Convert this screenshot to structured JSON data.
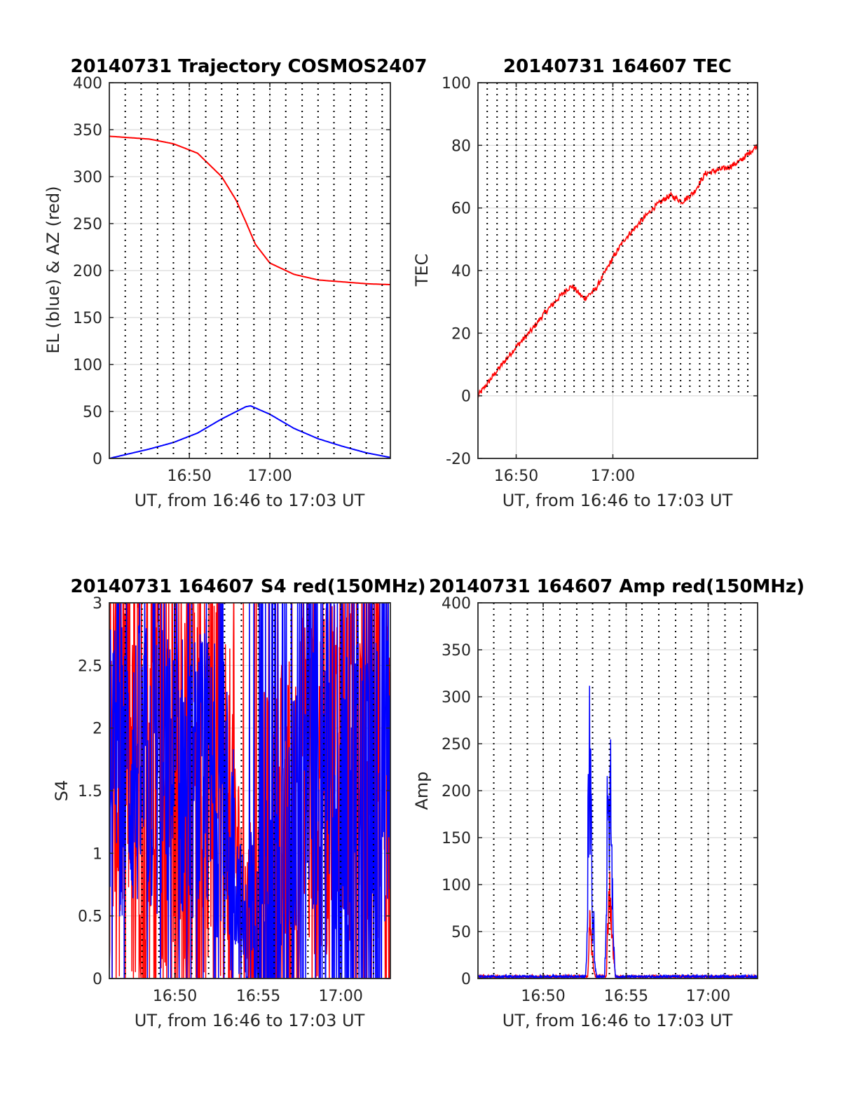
{
  "figure": {
    "background": "#ffffff"
  },
  "colors": {
    "red": "#ff0000",
    "blue": "#0000ff",
    "grid": "#d9d9d9",
    "axis": "#262626",
    "vline": "#000000"
  },
  "chart_data": [
    {
      "id": "traj",
      "type": "line",
      "title": "20140731 Trajectory COSMOS2407",
      "xlabel": "UT, from 16:46 to 17:03 UT",
      "ylabel": "EL (blue) & AZ (red)",
      "xlim": [
        16.667,
        17.25
      ],
      "ylim": [
        0,
        400
      ],
      "yticks": [
        0,
        50,
        100,
        150,
        200,
        250,
        300,
        350,
        400
      ],
      "ytick_labels": [
        "0",
        "50",
        "100",
        "150",
        "200",
        "250",
        "300",
        "350",
        "400"
      ],
      "xticks": [
        16.833,
        17.0
      ],
      "xtick_labels": [
        "16:50",
        "17:00"
      ],
      "grid": true,
      "vlines": [
        16.7,
        16.733,
        16.767,
        16.8,
        16.833,
        16.867,
        16.9,
        16.933,
        16.967,
        17.0,
        17.033,
        17.067,
        17.1,
        17.133,
        17.167,
        17.2,
        17.233
      ],
      "series": [
        {
          "color": "red",
          "x": [
            16.667,
            16.75,
            16.8,
            16.85,
            16.9,
            16.93,
            16.95,
            16.97,
            17.0,
            17.05,
            17.1,
            17.15,
            17.2,
            17.25
          ],
          "y": [
            343,
            340,
            335,
            325,
            300,
            275,
            252,
            228,
            208,
            196,
            190,
            188,
            186,
            185
          ]
        },
        {
          "color": "blue",
          "x": [
            16.667,
            16.75,
            16.8,
            16.85,
            16.9,
            16.95,
            16.96,
            17.0,
            17.05,
            17.1,
            17.15,
            17.2,
            17.25
          ],
          "y": [
            0,
            10,
            17,
            27,
            42,
            55,
            56,
            47,
            32,
            21,
            13,
            6,
            1
          ]
        }
      ]
    },
    {
      "id": "tec",
      "type": "line",
      "title": "20140731 164607 TEC",
      "xlabel": "UT, from 16:46 to 17:03 UT",
      "ylabel": "TEC",
      "xlim": [
        16.767,
        17.25
      ],
      "ylim": [
        -20,
        100
      ],
      "yticks": [
        -20,
        0,
        20,
        40,
        60,
        80,
        100
      ],
      "ytick_labels": [
        "-20",
        "0",
        "20",
        "40",
        "60",
        "80",
        "100"
      ],
      "xticks": [
        16.833,
        17.0
      ],
      "xtick_labels": [
        "16:50",
        "17:00"
      ],
      "grid": true,
      "vlines": [
        16.783,
        16.8,
        16.817,
        16.833,
        16.85,
        16.867,
        16.883,
        16.9,
        16.917,
        16.933,
        16.95,
        16.967,
        16.983,
        17.0,
        17.017,
        17.033,
        17.05,
        17.067,
        17.083,
        17.1,
        17.117,
        17.133,
        17.15,
        17.167,
        17.183,
        17.2,
        17.217,
        17.233
      ],
      "vline_range": [
        0,
        100
      ],
      "series": [
        {
          "color": "red",
          "x": [
            16.767,
            16.8,
            16.83,
            16.86,
            16.88,
            16.9,
            16.91,
            16.92,
            16.93,
            16.95,
            16.97,
            17.0,
            17.02,
            17.05,
            17.07,
            17.09,
            17.1,
            17.12,
            17.14,
            17.16,
            17.18,
            17.2,
            17.22,
            17.25
          ],
          "y": [
            0,
            8,
            15,
            21,
            26,
            30,
            32,
            34,
            35,
            31,
            34,
            44,
            50,
            56,
            60,
            63,
            64,
            62,
            65,
            71,
            72,
            73,
            75,
            80
          ]
        }
      ]
    },
    {
      "id": "s4",
      "type": "line",
      "title": "20140731 164607 S4 red(150MHz)",
      "xlabel": "UT, from 16:46 to 17:03 UT",
      "ylabel": "S4",
      "xlim": [
        16.767,
        17.05
      ],
      "ylim": [
        0,
        3
      ],
      "yticks": [
        0,
        0.5,
        1,
        1.5,
        2,
        2.5,
        3
      ],
      "ytick_labels": [
        "0",
        "0.5",
        "1",
        "1.5",
        "2",
        "2.5",
        "3"
      ],
      "xticks": [
        16.833,
        16.917,
        17.0
      ],
      "xtick_labels": [
        "16:50",
        "16:55",
        "17:00"
      ],
      "grid": true,
      "vlines": [
        16.783,
        16.8,
        16.817,
        16.833,
        16.85,
        16.867,
        16.883,
        16.9,
        16.917,
        16.933,
        16.95,
        16.967,
        16.983,
        17.0,
        17.017,
        17.033
      ],
      "series": [
        {
          "color": "red",
          "profile_x": [
            16.767,
            16.85,
            16.88,
            16.9,
            16.905,
            16.91,
            16.917,
            16.97,
            17.0,
            17.05
          ],
          "profile_y": [
            1.6,
            1.5,
            1.5,
            0.8,
            0.4,
            0.5,
            0.6,
            1.5,
            1.8,
            1.9
          ]
        },
        {
          "color": "blue",
          "profile_x": [
            16.767,
            16.85,
            16.88,
            16.9,
            16.905,
            16.91,
            16.917,
            16.97,
            17.0,
            17.05
          ],
          "profile_y": [
            1.7,
            1.6,
            1.5,
            0.5,
            0.2,
            0.7,
            0.3,
            1.5,
            1.5,
            1.5
          ]
        }
      ]
    },
    {
      "id": "amp",
      "type": "line",
      "title": "20140731 164607 Amp red(150MHz)",
      "xlabel": "UT, from 16:46 to 17:03 UT",
      "ylabel": "Amp",
      "xlim": [
        16.767,
        17.05
      ],
      "ylim": [
        0,
        400
      ],
      "yticks": [
        0,
        50,
        100,
        150,
        200,
        250,
        300,
        350,
        400
      ],
      "ytick_labels": [
        "0",
        "50",
        "100",
        "150",
        "200",
        "250",
        "300",
        "350",
        "400"
      ],
      "xticks": [
        16.833,
        16.917,
        17.0
      ],
      "xtick_labels": [
        "16:50",
        "16:55",
        "17:00"
      ],
      "grid": true,
      "vlines": [
        16.783,
        16.8,
        16.817,
        16.833,
        16.85,
        16.867,
        16.883,
        16.9,
        16.917,
        16.933,
        16.95,
        16.967,
        16.983,
        17.0,
        17.017,
        17.033
      ],
      "series": [
        {
          "color": "red",
          "x": [
            16.767,
            16.878,
            16.879,
            16.88,
            16.882,
            16.884,
            16.886,
            16.897,
            16.898,
            16.9,
            16.902,
            16.904,
            16.906,
            17.05
          ],
          "y": [
            2,
            2,
            20,
            60,
            35,
            10,
            2,
            2,
            45,
            100,
            60,
            30,
            2,
            2
          ]
        },
        {
          "color": "blue",
          "x": [
            16.767,
            16.876,
            16.878,
            16.8785,
            16.879,
            16.88,
            16.8805,
            16.881,
            16.882,
            16.883,
            16.884,
            16.885,
            16.887,
            16.895,
            16.897,
            16.898,
            16.899,
            16.9,
            16.901,
            16.902,
            16.903,
            16.904,
            16.906,
            17.05
          ],
          "y": [
            2,
            2,
            60,
            250,
            130,
            307,
            180,
            200,
            150,
            40,
            73,
            20,
            2,
            2,
            60,
            225,
            232,
            120,
            210,
            170,
            90,
            50,
            2,
            2
          ]
        }
      ]
    }
  ]
}
